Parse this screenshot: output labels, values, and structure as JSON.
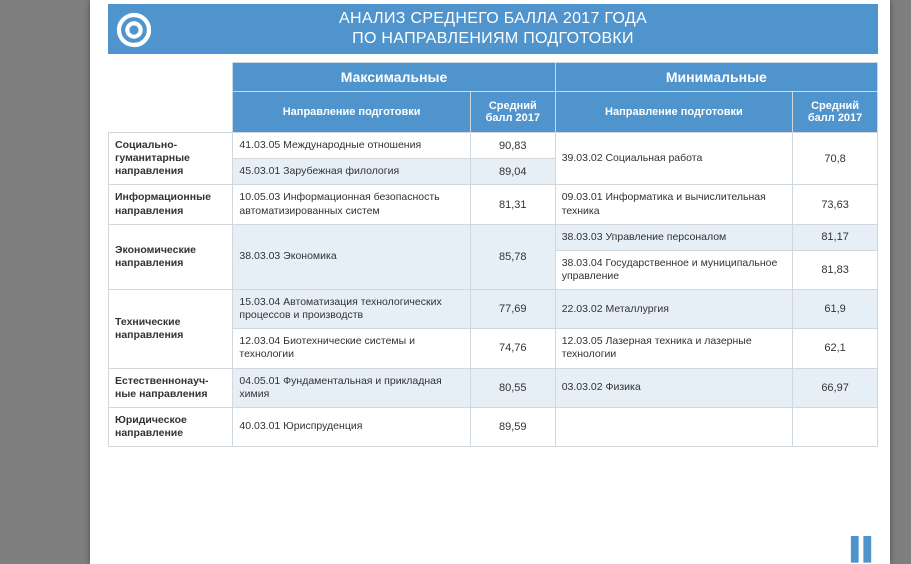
{
  "colors": {
    "page_bg": "#7f7f7f",
    "card_bg": "#ffffff",
    "accent": "#4f94cd",
    "accent_text": "#ffffff",
    "alt_row": "#e6eef6",
    "cell_border": "#d0d7de",
    "body_text": "#333333"
  },
  "title": {
    "line1": "АНАЛИЗ СРЕДНЕГО БАЛЛА 2017 ГОДА",
    "line2": "ПО НАПРАВЛЕНИЯМ ПОДГОТОВКИ"
  },
  "table": {
    "group_headers": {
      "max": "Максимальные",
      "min": "Минимальные"
    },
    "sub_headers": {
      "direction": "Направление подготовки",
      "score": "Средний балл 2017"
    },
    "categories": [
      {
        "name": "Социально-гуманитарные направления",
        "max": [
          {
            "direction": "41.03.05 Международные отношения",
            "score": "90,83"
          },
          {
            "direction": "45.03.01 Зарубежная филология",
            "score": "89,04"
          }
        ],
        "min": [
          {
            "direction": "39.03.02 Социальная работа",
            "score": "70,8"
          }
        ]
      },
      {
        "name": "Информационные направления",
        "max": [
          {
            "direction": "10.05.03 Информационная безопасность автоматизированных систем",
            "score": "81,31"
          }
        ],
        "min": [
          {
            "direction": "09.03.01 Информатика и вычислительная техника",
            "score": "73,63"
          }
        ]
      },
      {
        "name": "Экономические направления",
        "max": [
          {
            "direction": "38.03.03 Экономика",
            "score": "85,78"
          }
        ],
        "min": [
          {
            "direction": "38.03.03 Управление персоналом",
            "score": "81,17"
          },
          {
            "direction": "38.03.04 Государственное и муниципальное управление",
            "score": "81,83"
          }
        ]
      },
      {
        "name": "Технические направления",
        "max": [
          {
            "direction": "15.03.04 Автоматизация технологических процессов и производств",
            "score": "77,69"
          },
          {
            "direction": "12.03.04 Биотехнические системы и технологии",
            "score": "74,76"
          }
        ],
        "min": [
          {
            "direction": "22.03.02 Металлургия",
            "score": "61,9"
          },
          {
            "direction": "12.03.05 Лазерная техника и лазерные технологии",
            "score": "62,1"
          }
        ]
      },
      {
        "name": "Естественнонауч-ные направления",
        "max": [
          {
            "direction": "04.05.01 Фундаментальная и прикладная химия",
            "score": "80,55"
          }
        ],
        "min": [
          {
            "direction": "03.03.02 Физика",
            "score": "66,97"
          }
        ]
      },
      {
        "name": "Юридическое направление",
        "max": [
          {
            "direction": "40.03.01 Юриспруденция",
            "score": "89,59"
          }
        ],
        "min": []
      }
    ]
  }
}
